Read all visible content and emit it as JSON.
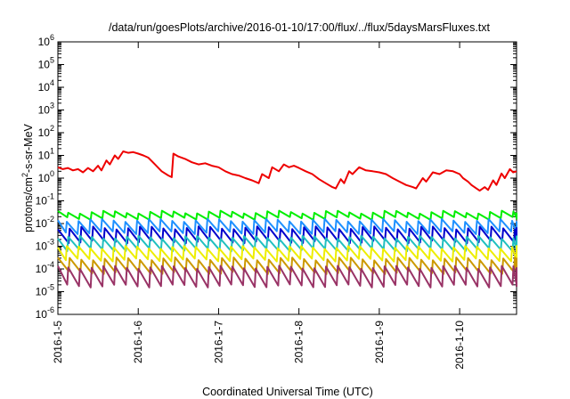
{
  "chart_data": {
    "type": "line",
    "title": "/data/run/goesPlots/archive/2016-01-10/17:00/flux/../flux/5daysMarsFluxes.txt",
    "xlabel": "Coordinated Universal Time (UTC)",
    "ylabel": "protons/cm²-s-sr-MeV",
    "ylabel_parts": {
      "before": "protons/cm",
      "sup": "2",
      "after": "-s-sr-MeV"
    },
    "y_scale": "log",
    "ylim": [
      1e-06,
      1000000.0
    ],
    "y_ticks": [
      {
        "base": "10",
        "exp": "-6",
        "value": 1e-06
      },
      {
        "base": "10",
        "exp": "-5",
        "value": 1e-05
      },
      {
        "base": "10",
        "exp": "-4",
        "value": 0.0001
      },
      {
        "base": "10",
        "exp": "-3",
        "value": 0.001
      },
      {
        "base": "10",
        "exp": "-2",
        "value": 0.01
      },
      {
        "base": "10",
        "exp": "-1",
        "value": 0.1
      },
      {
        "base": "10",
        "exp": "0",
        "value": 1
      },
      {
        "base": "10",
        "exp": "1",
        "value": 10
      },
      {
        "base": "10",
        "exp": "2",
        "value": 100
      },
      {
        "base": "10",
        "exp": "3",
        "value": 1000
      },
      {
        "base": "10",
        "exp": "4",
        "value": 10000
      },
      {
        "base": "10",
        "exp": "5",
        "value": 100000
      },
      {
        "base": "10",
        "exp": "6",
        "value": 1000000
      }
    ],
    "xlim": [
      "2016-01-05T00:00",
      "2016-01-10T17:00"
    ],
    "x_ticks": [
      "2016-1-5",
      "2016-1-6",
      "2016-1-7",
      "2016-1-8",
      "2016-1-9",
      "2016-1-10"
    ],
    "grid": false,
    "legend": "none",
    "series": [
      {
        "color": "#ee0000",
        "x": [
          "2016-01-05T00:00",
          "2016-01-05T01:30",
          "2016-01-05T03:00",
          "2016-01-05T04:30",
          "2016-01-05T06:00",
          "2016-01-05T07:30",
          "2016-01-05T09:00",
          "2016-01-05T10:30",
          "2016-01-05T12:00",
          "2016-01-05T13:00",
          "2016-01-05T14:30",
          "2016-01-05T15:30",
          "2016-01-05T17:00",
          "2016-01-05T18:00",
          "2016-01-05T19:30",
          "2016-01-05T21:00",
          "2016-01-05T22:30",
          "2016-01-06T00:00",
          "2016-01-06T01:30",
          "2016-01-06T03:00",
          "2016-01-06T05:00",
          "2016-01-06T07:00",
          "2016-01-06T09:00",
          "2016-01-06T10:00",
          "2016-01-06T10:30",
          "2016-01-06T12:00",
          "2016-01-06T14:00",
          "2016-01-06T16:00",
          "2016-01-06T18:00",
          "2016-01-06T20:00",
          "2016-01-06T22:00",
          "2016-01-07T00:00",
          "2016-01-07T02:00",
          "2016-01-07T04:00",
          "2016-01-07T06:00",
          "2016-01-07T08:00",
          "2016-01-07T10:00",
          "2016-01-07T12:00",
          "2016-01-07T13:00",
          "2016-01-07T15:00",
          "2016-01-07T16:00",
          "2016-01-07T18:00",
          "2016-01-07T19:30",
          "2016-01-07T21:00",
          "2016-01-07T22:30",
          "2016-01-08T00:00",
          "2016-01-08T02:00",
          "2016-01-08T04:00",
          "2016-01-08T06:00",
          "2016-01-08T08:00",
          "2016-01-08T10:00",
          "2016-01-08T11:00",
          "2016-01-08T12:30",
          "2016-01-08T13:30",
          "2016-01-08T15:00",
          "2016-01-08T16:00",
          "2016-01-08T18:00",
          "2016-01-08T20:00",
          "2016-01-08T22:00",
          "2016-01-09T00:00",
          "2016-01-09T02:00",
          "2016-01-09T04:00",
          "2016-01-09T06:00",
          "2016-01-09T08:00",
          "2016-01-09T10:00",
          "2016-01-09T11:00",
          "2016-01-09T13:00",
          "2016-01-09T14:00",
          "2016-01-09T16:00",
          "2016-01-09T18:00",
          "2016-01-09T20:00",
          "2016-01-09T22:00",
          "2016-01-10T00:00",
          "2016-01-10T01:00",
          "2016-01-10T02:30",
          "2016-01-10T03:30",
          "2016-01-10T05:00",
          "2016-01-10T06:00",
          "2016-01-10T07:30",
          "2016-01-10T08:30",
          "2016-01-10T10:00",
          "2016-01-10T11:00",
          "2016-01-10T12:30",
          "2016-01-10T13:30",
          "2016-01-10T15:00",
          "2016-01-10T16:00",
          "2016-01-10T17:00"
        ],
        "y": [
          3.0,
          2.5,
          2.8,
          2.2,
          2.5,
          1.8,
          2.8,
          2.0,
          3.5,
          2.2,
          6.0,
          4.0,
          10.0,
          7.0,
          15.0,
          13.0,
          14.0,
          12.0,
          10.0,
          8.0,
          4.0,
          2.0,
          1.3,
          1.1,
          12.0,
          9.0,
          7.0,
          5.0,
          4.0,
          4.5,
          3.5,
          3.0,
          2.0,
          1.5,
          1.3,
          1.0,
          0.8,
          0.6,
          1.5,
          1.0,
          3.0,
          2.0,
          4.0,
          3.0,
          3.5,
          2.8,
          2.0,
          1.5,
          0.9,
          0.6,
          0.4,
          0.35,
          0.9,
          0.6,
          2.0,
          1.5,
          3.0,
          2.2,
          2.0,
          1.8,
          1.5,
          1.0,
          0.7,
          0.5,
          0.4,
          0.35,
          1.0,
          0.7,
          1.8,
          1.5,
          2.2,
          2.0,
          1.5,
          1.0,
          0.7,
          0.5,
          0.35,
          0.28,
          0.4,
          0.3,
          0.8,
          0.5,
          1.6,
          1.0,
          2.5,
          1.8,
          2.0
        ]
      },
      {
        "color": "#00ee00",
        "peak": 0.032,
        "trough": 0.017
      },
      {
        "color": "#1e90ff",
        "peak": 0.014,
        "trough": 0.004
      },
      {
        "color": "#0000cc",
        "peak": 0.0065,
        "trough": 0.0016
      },
      {
        "color": "#20c0c0",
        "peak": 0.0025,
        "trough": 0.0007
      },
      {
        "color": "#eeee00",
        "peak": 0.0009,
        "trough": 0.00025
      },
      {
        "color": "#cc9900",
        "peak": 0.00028,
        "trough": 7e-05
      },
      {
        "color": "#993366",
        "peak": 0.00012,
        "trough": 1.8e-05
      }
    ],
    "oscillation_period_hours": 3.5,
    "colors": {
      "axis": "#000000",
      "background": "#ffffff"
    }
  }
}
